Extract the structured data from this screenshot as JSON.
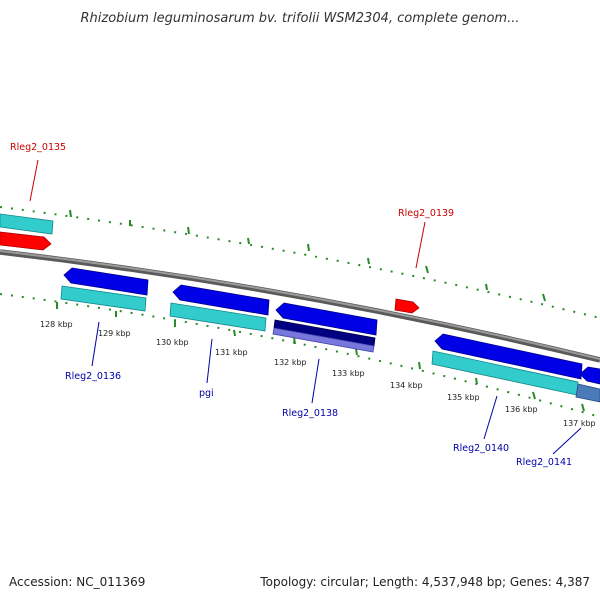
{
  "title": "Rhizobium leguminosarum bv. trifolii WSM2304, complete genom...",
  "footer": {
    "accession": "Accession: NC_011369",
    "summary": "Topology: circular; Length: 4,537,948 bp; Genes: 4,387"
  },
  "ticks": [
    "128 kbp",
    "129 kbp",
    "130 kbp",
    "131 kbp",
    "132 kbp",
    "133 kbp",
    "134 kbp",
    "135 kbp",
    "136 kbp",
    "137 kbp"
  ],
  "gene_labels": {
    "rleg2_0135": "Rleg2_0135",
    "rleg2_0139": "Rleg2_0139",
    "rleg2_0136": "Rleg2_0136",
    "pgi": "pgi",
    "rleg2_0138": "Rleg2_0138",
    "rleg2_0140": "Rleg2_0140",
    "rleg2_0141": "Rleg2_0141"
  },
  "colors": {
    "forward_gene": "#ff0000",
    "reverse_gene": "#0000e6",
    "cds": "#33cccc",
    "highlight_gene": "#000080",
    "highlight_cds": "#7777dd",
    "backbone": "#888888",
    "tick": "#2a8a2a",
    "forward_label": "#cc0000",
    "reverse_label": "#0000aa"
  }
}
